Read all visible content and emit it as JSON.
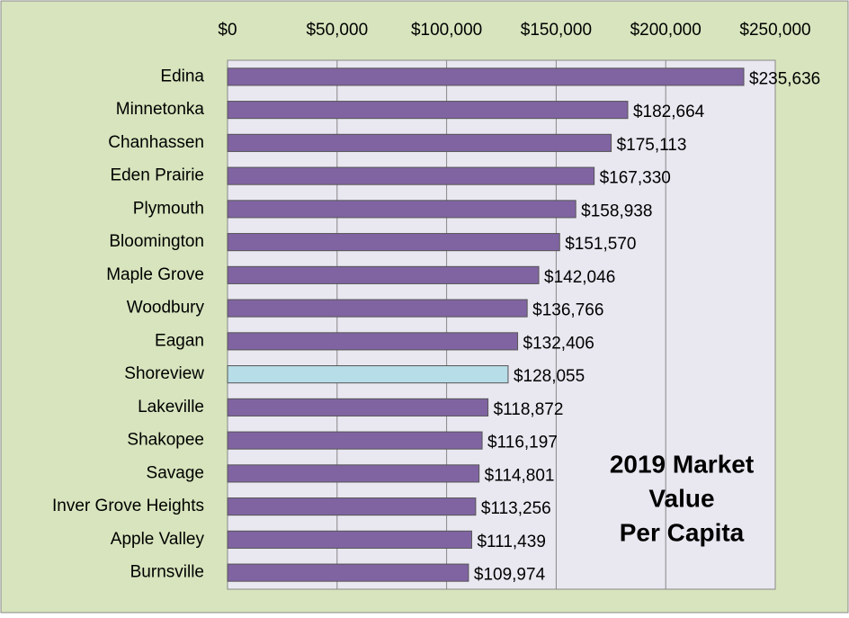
{
  "chart_data": {
    "type": "barh",
    "title": [
      "2019 Market",
      "Value",
      "Per Capita"
    ],
    "categories": [
      "Edina",
      "Minnetonka",
      "Chanhassen",
      "Eden Prairie",
      "Plymouth",
      "Bloomington",
      "Maple Grove",
      "Woodbury",
      "Eagan",
      "Shoreview",
      "Lakeville",
      "Shakopee",
      "Savage",
      "Inver Grove Heights",
      "Apple Valley",
      "Burnsville"
    ],
    "values": [
      235636,
      182664,
      175113,
      167330,
      158938,
      151570,
      142046,
      136766,
      132406,
      128055,
      118872,
      116197,
      114801,
      113256,
      111439,
      109974
    ],
    "value_labels": [
      "$235,636",
      "$182,664",
      "$175,113",
      "$167,330",
      "$158,938",
      "$151,570",
      "$142,046",
      "$136,766",
      "$132,406",
      "$128,055",
      "$118,872",
      "$116,197",
      "$114,801",
      "$113,256",
      "$111,439",
      "$109,974"
    ],
    "colors": [
      "#8064a2",
      "#8064a2",
      "#8064a2",
      "#8064a2",
      "#8064a2",
      "#8064a2",
      "#8064a2",
      "#8064a2",
      "#8064a2",
      "#b7dee8",
      "#8064a2",
      "#8064a2",
      "#8064a2",
      "#8064a2",
      "#8064a2",
      "#8064a2"
    ],
    "xlim": [
      0,
      250000
    ],
    "xticks": [
      {
        "value": 0,
        "label": "$0"
      },
      {
        "value": 50000,
        "label": "$50,000"
      },
      {
        "value": 100000,
        "label": "$100,000"
      },
      {
        "value": 150000,
        "label": "$150,000"
      },
      {
        "value": 200000,
        "label": "$200,000"
      },
      {
        "value": 250000,
        "label": "$250,000"
      }
    ],
    "grid": true
  }
}
